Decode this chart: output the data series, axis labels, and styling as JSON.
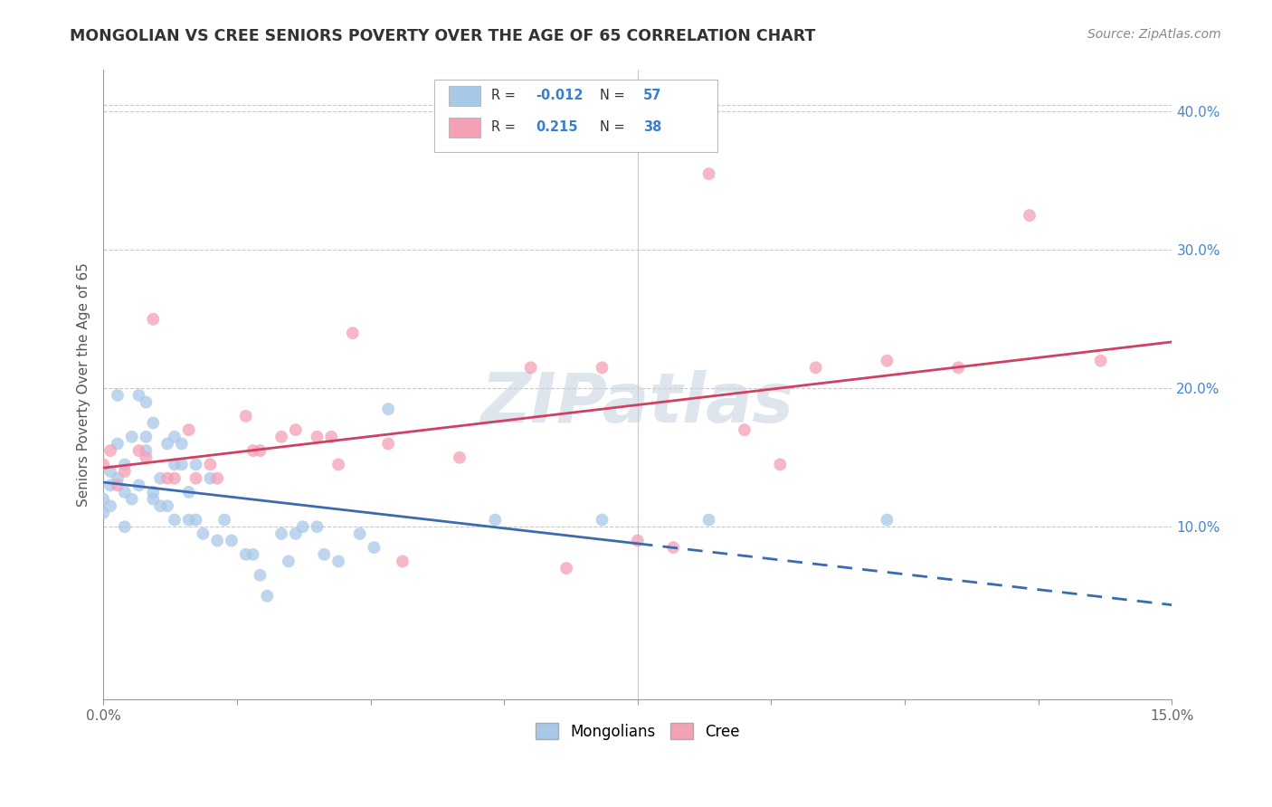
{
  "title": "MONGOLIAN VS CREE SENIORS POVERTY OVER THE AGE OF 65 CORRELATION CHART",
  "source": "Source: ZipAtlas.com",
  "ylabel": "Seniors Poverty Over the Age of 65",
  "xlim": [
    0.0,
    0.15
  ],
  "ylim": [
    -0.025,
    0.43
  ],
  "xticks": [
    0.0,
    0.01875,
    0.0375,
    0.05625,
    0.075,
    0.09375,
    0.1125,
    0.13125,
    0.15
  ],
  "xticklabels": [
    "0.0%",
    "",
    "",
    "",
    "",
    "",
    "",
    "",
    "15.0%"
  ],
  "yticks_right": [
    0.1,
    0.2,
    0.3,
    0.4
  ],
  "yticklabels_right": [
    "10.0%",
    "20.0%",
    "30.0%",
    "40.0%"
  ],
  "watermark": "ZIPatlas",
  "mongolian_R": "-0.012",
  "mongolian_N": "57",
  "cree_R": "0.215",
  "cree_N": "38",
  "mongolian_color": "#A8C8E8",
  "cree_color": "#F4A0B5",
  "mongolian_line_color": "#3A6BB0",
  "cree_line_color": "#D04060",
  "mongolian_line_solid_end": 0.075,
  "background_color": "#FFFFFF",
  "grid_color": "#C8C8C8",
  "mongolian_x": [
    0.0,
    0.0,
    0.001,
    0.001,
    0.001,
    0.002,
    0.002,
    0.002,
    0.003,
    0.003,
    0.003,
    0.004,
    0.004,
    0.005,
    0.005,
    0.006,
    0.006,
    0.006,
    0.007,
    0.007,
    0.007,
    0.008,
    0.008,
    0.009,
    0.009,
    0.01,
    0.01,
    0.01,
    0.011,
    0.011,
    0.012,
    0.012,
    0.013,
    0.013,
    0.014,
    0.015,
    0.016,
    0.017,
    0.018,
    0.02,
    0.021,
    0.022,
    0.023,
    0.025,
    0.026,
    0.027,
    0.028,
    0.03,
    0.031,
    0.033,
    0.036,
    0.038,
    0.04,
    0.055,
    0.07,
    0.085,
    0.11
  ],
  "mongolian_y": [
    0.11,
    0.12,
    0.13,
    0.115,
    0.14,
    0.195,
    0.135,
    0.16,
    0.125,
    0.145,
    0.1,
    0.165,
    0.12,
    0.195,
    0.13,
    0.19,
    0.155,
    0.165,
    0.12,
    0.175,
    0.125,
    0.135,
    0.115,
    0.16,
    0.115,
    0.145,
    0.165,
    0.105,
    0.145,
    0.16,
    0.105,
    0.125,
    0.105,
    0.145,
    0.095,
    0.135,
    0.09,
    0.105,
    0.09,
    0.08,
    0.08,
    0.065,
    0.05,
    0.095,
    0.075,
    0.095,
    0.1,
    0.1,
    0.08,
    0.075,
    0.095,
    0.085,
    0.185,
    0.105,
    0.105,
    0.105,
    0.105
  ],
  "cree_x": [
    0.0,
    0.001,
    0.002,
    0.003,
    0.005,
    0.006,
    0.007,
    0.009,
    0.01,
    0.012,
    0.013,
    0.015,
    0.016,
    0.02,
    0.021,
    0.022,
    0.025,
    0.027,
    0.03,
    0.032,
    0.033,
    0.035,
    0.04,
    0.042,
    0.05,
    0.06,
    0.065,
    0.07,
    0.075,
    0.08,
    0.085,
    0.09,
    0.095,
    0.1,
    0.11,
    0.12,
    0.13,
    0.14
  ],
  "cree_y": [
    0.145,
    0.155,
    0.13,
    0.14,
    0.155,
    0.15,
    0.25,
    0.135,
    0.135,
    0.17,
    0.135,
    0.145,
    0.135,
    0.18,
    0.155,
    0.155,
    0.165,
    0.17,
    0.165,
    0.165,
    0.145,
    0.24,
    0.16,
    0.075,
    0.15,
    0.215,
    0.07,
    0.215,
    0.09,
    0.085,
    0.355,
    0.17,
    0.145,
    0.215,
    0.22,
    0.215,
    0.325,
    0.22
  ]
}
